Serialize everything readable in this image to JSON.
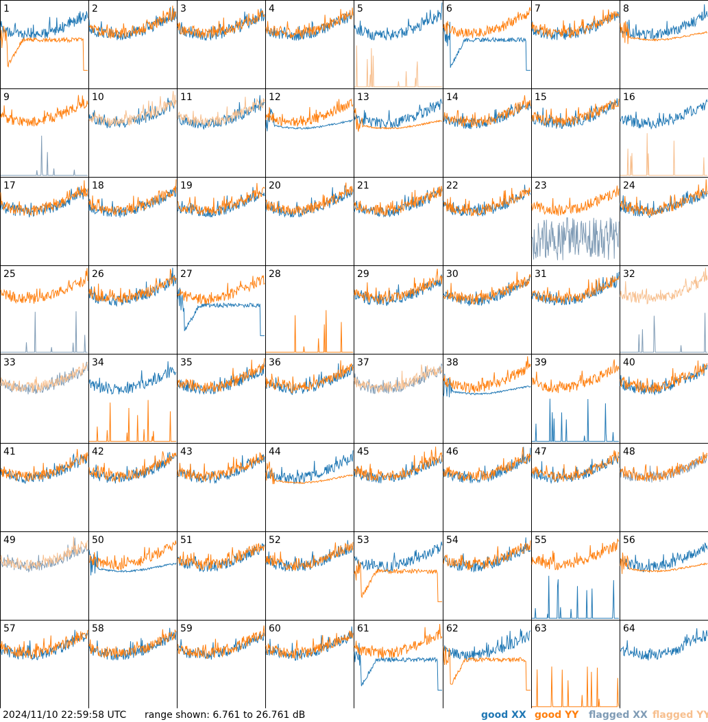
{
  "footer": {
    "timestamp": "2024/11/10 22:59:58 UTC",
    "range_text": "range shown: 6.761 to 26.761 dB",
    "legend": {
      "good_xx": "good XX",
      "good_yy": "good YY",
      "flagged_xx": "flagged XX",
      "flagged_yy": "flagged YY"
    }
  },
  "colors": {
    "good_xx": "#1f77b4",
    "good_yy": "#ff7f0e",
    "flagged_xx": "#7f9bb5",
    "flagged_yy": "#f7bf8e",
    "border": "#000000",
    "background": "#ffffff"
  },
  "chart_data": {
    "type": "line",
    "layout": "8x8 grid of small multiples, one per antenna",
    "ylim": [
      6.761,
      26.761
    ],
    "yunits": "dB",
    "panels": [
      {
        "id": "1",
        "xx": "good",
        "yy": "good",
        "xx_shape": "normal",
        "yy_shape": "dip"
      },
      {
        "id": "2",
        "xx": "good",
        "yy": "good",
        "xx_shape": "normal",
        "yy_shape": "normal"
      },
      {
        "id": "3",
        "xx": "good",
        "yy": "good",
        "xx_shape": "normal",
        "yy_shape": "normal"
      },
      {
        "id": "4",
        "xx": "good",
        "yy": "good",
        "xx_shape": "normal",
        "yy_shape": "normal"
      },
      {
        "id": "5",
        "xx": "good",
        "yy": "flagged",
        "xx_shape": "normal",
        "yy_shape": "spikes"
      },
      {
        "id": "6",
        "xx": "good",
        "yy": "good",
        "xx_shape": "dip",
        "yy_shape": "normal"
      },
      {
        "id": "7",
        "xx": "good",
        "yy": "good",
        "xx_shape": "normal",
        "yy_shape": "normal"
      },
      {
        "id": "8",
        "xx": "good",
        "yy": "good",
        "xx_shape": "normal",
        "yy_shape": "smooth"
      },
      {
        "id": "9",
        "xx": "flagged",
        "yy": "good",
        "xx_shape": "spikes",
        "yy_shape": "normal"
      },
      {
        "id": "10",
        "xx": "good",
        "yy": "flagged",
        "xx_shape": "normal",
        "yy_shape": "normal"
      },
      {
        "id": "11",
        "xx": "good",
        "yy": "flagged",
        "xx_shape": "normal",
        "yy_shape": "normal"
      },
      {
        "id": "12",
        "xx": "good",
        "yy": "good",
        "xx_shape": "smooth",
        "yy_shape": "normal"
      },
      {
        "id": "13",
        "xx": "good",
        "yy": "good",
        "xx_shape": "normal",
        "yy_shape": "smooth"
      },
      {
        "id": "14",
        "xx": "good",
        "yy": "good",
        "xx_shape": "normal",
        "yy_shape": "normal"
      },
      {
        "id": "15",
        "xx": "good",
        "yy": "good",
        "xx_shape": "normal",
        "yy_shape": "normal"
      },
      {
        "id": "16",
        "xx": "good",
        "yy": "flagged",
        "xx_shape": "normal",
        "yy_shape": "spikes"
      },
      {
        "id": "17",
        "xx": "good",
        "yy": "good",
        "xx_shape": "normal",
        "yy_shape": "normal"
      },
      {
        "id": "18",
        "xx": "good",
        "yy": "good",
        "xx_shape": "normal",
        "yy_shape": "normal"
      },
      {
        "id": "19",
        "xx": "good",
        "yy": "good",
        "xx_shape": "normal",
        "yy_shape": "normal"
      },
      {
        "id": "20",
        "xx": "good",
        "yy": "good",
        "xx_shape": "normal",
        "yy_shape": "normal"
      },
      {
        "id": "21",
        "xx": "good",
        "yy": "good",
        "xx_shape": "normal",
        "yy_shape": "normal"
      },
      {
        "id": "22",
        "xx": "good",
        "yy": "good",
        "xx_shape": "normal",
        "yy_shape": "normal"
      },
      {
        "id": "23",
        "xx": "flagged",
        "yy": "good",
        "xx_shape": "noisy",
        "yy_shape": "normal"
      },
      {
        "id": "24",
        "xx": "good",
        "yy": "good",
        "xx_shape": "normal",
        "yy_shape": "normal"
      },
      {
        "id": "25",
        "xx": "flagged",
        "yy": "good",
        "xx_shape": "spikes",
        "yy_shape": "normal"
      },
      {
        "id": "26",
        "xx": "good",
        "yy": "good",
        "xx_shape": "normal",
        "yy_shape": "normal"
      },
      {
        "id": "27",
        "xx": "good",
        "yy": "good",
        "xx_shape": "dip",
        "yy_shape": "normal"
      },
      {
        "id": "28",
        "xx": "good",
        "yy": "good",
        "xx_shape": "none",
        "yy_shape": "spikes"
      },
      {
        "id": "29",
        "xx": "good",
        "yy": "good",
        "xx_shape": "normal",
        "yy_shape": "normal"
      },
      {
        "id": "30",
        "xx": "good",
        "yy": "good",
        "xx_shape": "normal",
        "yy_shape": "normal"
      },
      {
        "id": "31",
        "xx": "good",
        "yy": "good",
        "xx_shape": "normal",
        "yy_shape": "normal"
      },
      {
        "id": "32",
        "xx": "flagged",
        "yy": "flagged",
        "xx_shape": "spikes",
        "yy_shape": "normal"
      },
      {
        "id": "33",
        "xx": "flagged",
        "yy": "flagged",
        "xx_shape": "normal",
        "yy_shape": "normal"
      },
      {
        "id": "34",
        "xx": "good",
        "yy": "good",
        "xx_shape": "normal",
        "yy_shape": "spikes"
      },
      {
        "id": "35",
        "xx": "good",
        "yy": "good",
        "xx_shape": "normal",
        "yy_shape": "normal"
      },
      {
        "id": "36",
        "xx": "good",
        "yy": "good",
        "xx_shape": "normal",
        "yy_shape": "normal"
      },
      {
        "id": "37",
        "xx": "flagged",
        "yy": "flagged",
        "xx_shape": "normal",
        "yy_shape": "normal"
      },
      {
        "id": "38",
        "xx": "good",
        "yy": "good",
        "xx_shape": "smooth",
        "yy_shape": "normal"
      },
      {
        "id": "39",
        "xx": "good",
        "yy": "good",
        "xx_shape": "spikes",
        "yy_shape": "normal"
      },
      {
        "id": "40",
        "xx": "good",
        "yy": "good",
        "xx_shape": "normal",
        "yy_shape": "normal"
      },
      {
        "id": "41",
        "xx": "good",
        "yy": "good",
        "xx_shape": "normal",
        "yy_shape": "normal"
      },
      {
        "id": "42",
        "xx": "good",
        "yy": "good",
        "xx_shape": "normal",
        "yy_shape": "normal"
      },
      {
        "id": "43",
        "xx": "good",
        "yy": "good",
        "xx_shape": "normal",
        "yy_shape": "normal"
      },
      {
        "id": "44",
        "xx": "good",
        "yy": "good",
        "xx_shape": "normal",
        "yy_shape": "smooth"
      },
      {
        "id": "45",
        "xx": "good",
        "yy": "good",
        "xx_shape": "normal",
        "yy_shape": "normal"
      },
      {
        "id": "46",
        "xx": "good",
        "yy": "good",
        "xx_shape": "normal",
        "yy_shape": "normal"
      },
      {
        "id": "47",
        "xx": "good",
        "yy": "good",
        "xx_shape": "normal",
        "yy_shape": "normal"
      },
      {
        "id": "48",
        "xx": "flagged",
        "yy": "good",
        "xx_shape": "normal",
        "yy_shape": "normal"
      },
      {
        "id": "49",
        "xx": "flagged",
        "yy": "flagged",
        "xx_shape": "normal",
        "yy_shape": "normal"
      },
      {
        "id": "50",
        "xx": "good",
        "yy": "good",
        "xx_shape": "smooth",
        "yy_shape": "normal"
      },
      {
        "id": "51",
        "xx": "good",
        "yy": "good",
        "xx_shape": "normal",
        "yy_shape": "normal"
      },
      {
        "id": "52",
        "xx": "good",
        "yy": "good",
        "xx_shape": "normal",
        "yy_shape": "normal"
      },
      {
        "id": "53",
        "xx": "good",
        "yy": "good",
        "xx_shape": "normal",
        "yy_shape": "dip"
      },
      {
        "id": "54",
        "xx": "good",
        "yy": "good",
        "xx_shape": "normal",
        "yy_shape": "normal"
      },
      {
        "id": "55",
        "xx": "good",
        "yy": "good",
        "xx_shape": "spikes",
        "yy_shape": "normal"
      },
      {
        "id": "56",
        "xx": "good",
        "yy": "good",
        "xx_shape": "normal",
        "yy_shape": "smooth"
      },
      {
        "id": "57",
        "xx": "good",
        "yy": "good",
        "xx_shape": "normal",
        "yy_shape": "normal"
      },
      {
        "id": "58",
        "xx": "good",
        "yy": "good",
        "xx_shape": "normal",
        "yy_shape": "normal"
      },
      {
        "id": "59",
        "xx": "good",
        "yy": "good",
        "xx_shape": "normal",
        "yy_shape": "normal"
      },
      {
        "id": "60",
        "xx": "good",
        "yy": "good",
        "xx_shape": "normal",
        "yy_shape": "normal"
      },
      {
        "id": "61",
        "xx": "good",
        "yy": "good",
        "xx_shape": "dip",
        "yy_shape": "normal"
      },
      {
        "id": "62",
        "xx": "good",
        "yy": "good",
        "xx_shape": "normal",
        "yy_shape": "dip"
      },
      {
        "id": "63",
        "xx": "good",
        "yy": "good",
        "xx_shape": "none",
        "yy_shape": "spikes"
      },
      {
        "id": "64",
        "xx": "good",
        "yy": "good",
        "xx_shape": "normal",
        "yy_shape": "none"
      }
    ]
  }
}
